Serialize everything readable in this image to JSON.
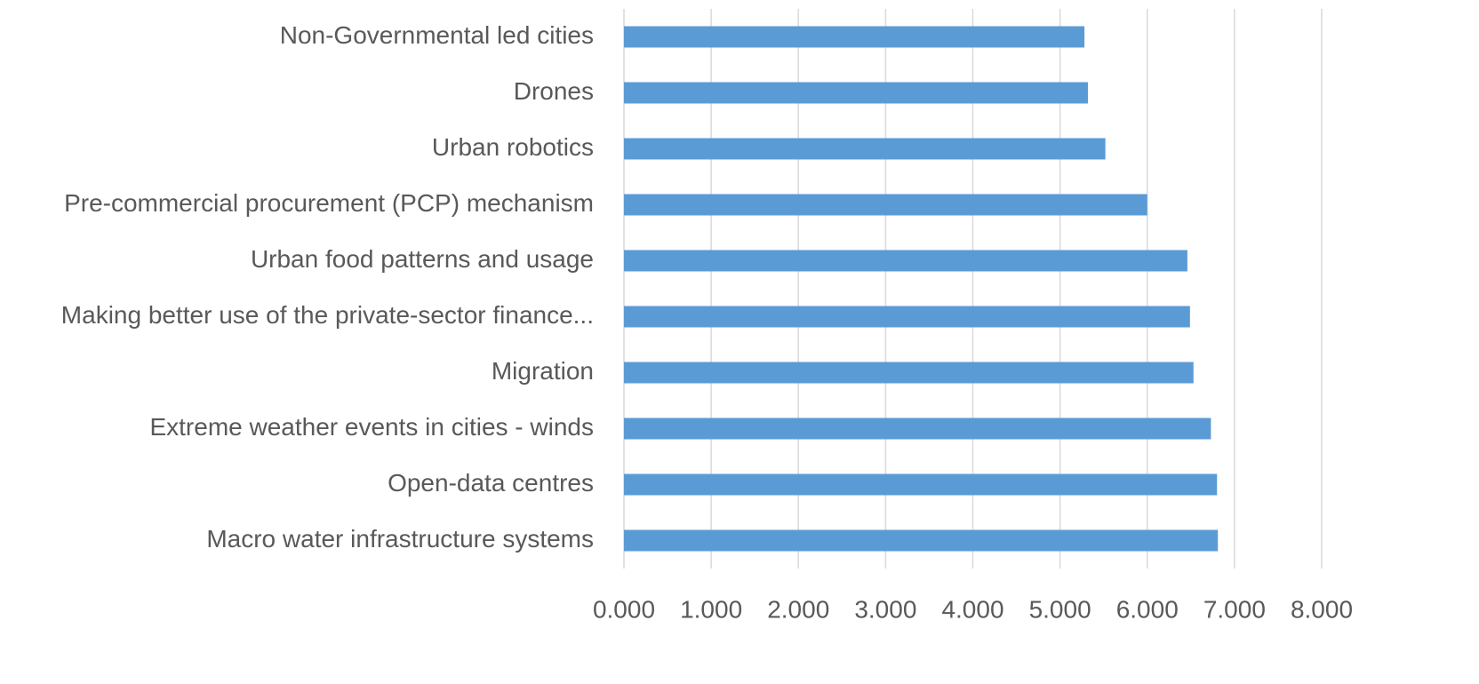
{
  "chart_data": {
    "type": "barh",
    "categories": [
      "Non-Governmental led cities",
      "Drones",
      "Urban robotics",
      "Pre-commercial procurement (PCP) mechanism",
      "Urban food patterns and usage",
      "Making better use of the private-sector finance...",
      "Migration",
      "Extreme weather events in cities - winds",
      "Open-data centres",
      "Macro water infrastructure systems"
    ],
    "values": [
      5.28,
      5.32,
      5.52,
      6.0,
      6.46,
      6.49,
      6.53,
      6.73,
      6.8,
      6.81
    ],
    "color": "#5b9bd5",
    "xlim": [
      0,
      8
    ],
    "xticks": [
      {
        "value": 0,
        "label": "0.000"
      },
      {
        "value": 1,
        "label": "1.000"
      },
      {
        "value": 2,
        "label": "2.000"
      },
      {
        "value": 3,
        "label": "3.000"
      },
      {
        "value": 4,
        "label": "4.000"
      },
      {
        "value": 5,
        "label": "5.000"
      },
      {
        "value": 6,
        "label": "6.000"
      },
      {
        "value": 7,
        "label": "7.000"
      },
      {
        "value": 8,
        "label": "8.000"
      }
    ],
    "grid": true
  }
}
